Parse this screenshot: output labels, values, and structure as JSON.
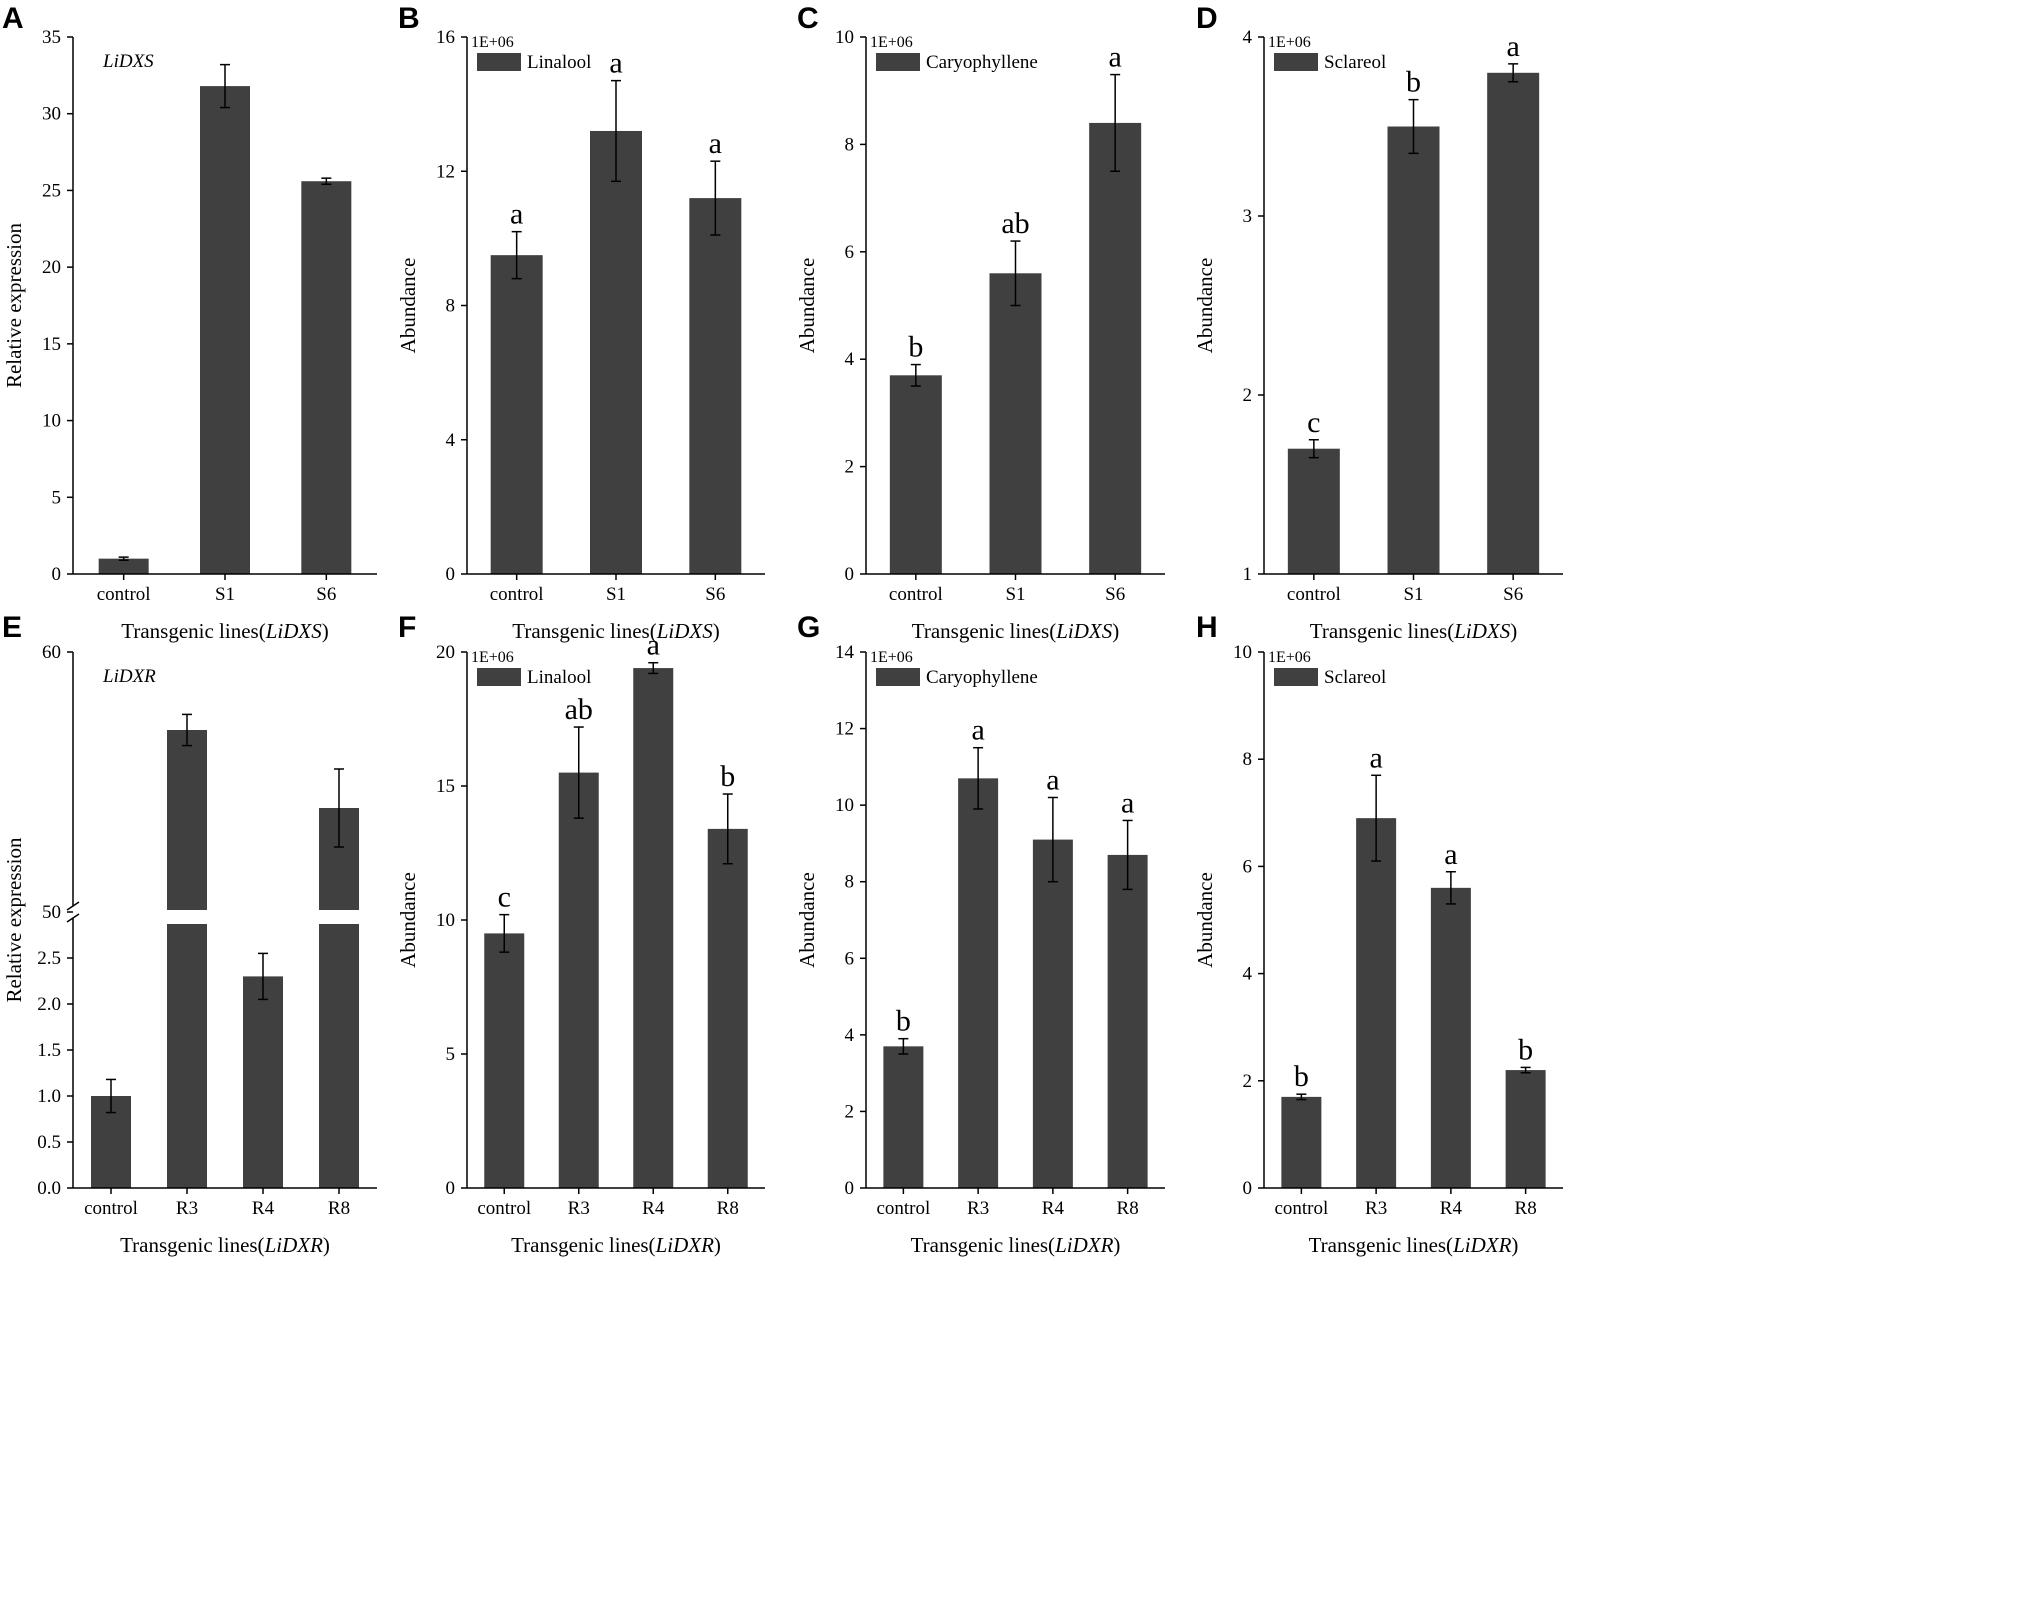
{
  "chart_data": [
    {
      "panel": "A",
      "type": "bar",
      "gene_label": "LiDXS",
      "categories": [
        "control",
        "S1",
        "S6"
      ],
      "values": [
        1.0,
        31.8,
        25.6
      ],
      "errors": [
        0.1,
        1.4,
        0.2
      ],
      "significance": [],
      "ylabel": "Relative expression",
      "xlabel_prefix": "Transgenic lines(",
      "xlabel_italic": "LiDXS",
      "xlabel_suffix": ")",
      "ylim": [
        0,
        35
      ],
      "yticks": [
        0,
        5,
        10,
        15,
        20,
        25,
        30,
        35
      ],
      "ytick_labels": [
        "0",
        "5",
        "10",
        "15",
        "20",
        "25",
        "30",
        "35"
      ]
    },
    {
      "panel": "B",
      "type": "bar",
      "legend": "Linalool",
      "multiplier": "1E+06",
      "categories": [
        "control",
        "S1",
        "S6"
      ],
      "values": [
        9.5,
        13.2,
        11.2
      ],
      "errors": [
        0.7,
        1.5,
        1.1
      ],
      "significance": [
        "a",
        "a",
        "a"
      ],
      "ylabel": "Abundance",
      "xlabel_prefix": "Transgenic lines(",
      "xlabel_italic": "LiDXS",
      "xlabel_suffix": ")",
      "ylim": [
        0,
        16
      ],
      "yticks": [
        0,
        4,
        8,
        12,
        16
      ],
      "ytick_labels": [
        "0",
        "4",
        "8",
        "12",
        "16"
      ]
    },
    {
      "panel": "C",
      "type": "bar",
      "legend": "Caryophyllene",
      "multiplier": "1E+06",
      "categories": [
        "control",
        "S1",
        "S6"
      ],
      "values": [
        3.7,
        5.6,
        8.4
      ],
      "errors": [
        0.2,
        0.6,
        0.9
      ],
      "significance": [
        "b",
        "ab",
        "a"
      ],
      "ylabel": "Abundance",
      "xlabel_prefix": "Transgenic lines(",
      "xlabel_italic": "LiDXS",
      "xlabel_suffix": ")",
      "ylim": [
        0,
        10
      ],
      "yticks": [
        0,
        2,
        4,
        6,
        8,
        10
      ],
      "ytick_labels": [
        "0",
        "2",
        "4",
        "6",
        "8",
        "10"
      ]
    },
    {
      "panel": "D",
      "type": "bar",
      "legend": "Sclareol",
      "multiplier": "1E+06",
      "categories": [
        "control",
        "S1",
        "S6"
      ],
      "values": [
        1.7,
        3.5,
        3.8
      ],
      "errors": [
        0.05,
        0.15,
        0.05
      ],
      "significance": [
        "c",
        "b",
        "a"
      ],
      "ylabel": "Abundance",
      "xlabel_prefix": "Transgenic lines(",
      "xlabel_italic": "LiDXS",
      "xlabel_suffix": ")",
      "ylim": [
        1,
        4
      ],
      "yticks": [
        1,
        2,
        3,
        4
      ],
      "ytick_labels": [
        "1",
        "2",
        "3",
        "4"
      ]
    },
    {
      "panel": "E",
      "type": "bar",
      "gene_label": "LiDXR",
      "broken_axis": true,
      "categories": [
        "control",
        "R3",
        "R4",
        "R8"
      ],
      "values": [
        1.0,
        57.0,
        2.3,
        54.0
      ],
      "errors": [
        0.18,
        0.6,
        0.25,
        1.5
      ],
      "significance": [],
      "ylabel": "Relative expression",
      "xlabel_prefix": "Transgenic lines(",
      "xlabel_italic": "LiDXR",
      "xlabel_suffix": ")",
      "lower_ylim": [
        0,
        3
      ],
      "upper_ylim": [
        50,
        60
      ],
      "yticks": [
        0,
        0.5,
        1.0,
        1.5,
        2.0,
        2.5,
        50,
        60
      ],
      "ytick_labels": [
        "0.0",
        "0.5",
        "1.0",
        "1.5",
        "2.0",
        "2.5",
        "50",
        "60"
      ]
    },
    {
      "panel": "F",
      "type": "bar",
      "legend": "Linalool",
      "multiplier": "1E+06",
      "categories": [
        "control",
        "R3",
        "R4",
        "R8"
      ],
      "values": [
        9.5,
        15.5,
        19.4,
        13.4
      ],
      "errors": [
        0.7,
        1.7,
        0.2,
        1.3
      ],
      "significance": [
        "c",
        "ab",
        "a",
        "b"
      ],
      "ylabel": "Abundance",
      "xlabel_prefix": "Transgenic lines(",
      "xlabel_italic": "LiDXR",
      "xlabel_suffix": ")",
      "ylim": [
        0,
        20
      ],
      "yticks": [
        0,
        5,
        10,
        15,
        20
      ],
      "ytick_labels": [
        "0",
        "5",
        "10",
        "15",
        "20"
      ]
    },
    {
      "panel": "G",
      "type": "bar",
      "legend": "Caryophyllene",
      "multiplier": "1E+06",
      "categories": [
        "control",
        "R3",
        "R4",
        "R8"
      ],
      "values": [
        3.7,
        10.7,
        9.1,
        8.7
      ],
      "errors": [
        0.2,
        0.8,
        1.1,
        0.9
      ],
      "significance": [
        "b",
        "a",
        "a",
        "a"
      ],
      "ylabel": "Abundance",
      "xlabel_prefix": "Transgenic lines(",
      "xlabel_italic": "LiDXR",
      "xlabel_suffix": ")",
      "ylim": [
        0,
        14
      ],
      "yticks": [
        0,
        2,
        4,
        6,
        8,
        10,
        12,
        14
      ],
      "ytick_labels": [
        "0",
        "2",
        "4",
        "6",
        "8",
        "10",
        "12",
        "14"
      ]
    },
    {
      "panel": "H",
      "type": "bar",
      "legend": "Sclareol",
      "multiplier": "1E+06",
      "categories": [
        "control",
        "R3",
        "R4",
        "R8"
      ],
      "values": [
        1.7,
        6.9,
        5.6,
        2.2
      ],
      "errors": [
        0.05,
        0.8,
        0.3,
        0.05
      ],
      "significance": [
        "b",
        "a",
        "a",
        "b"
      ],
      "ylabel": "Abundance",
      "xlabel_prefix": "Transgenic lines(",
      "xlabel_italic": "LiDXR",
      "xlabel_suffix": ")",
      "ylim": [
        0,
        10
      ],
      "yticks": [
        0,
        2,
        4,
        6,
        8,
        10
      ],
      "ytick_labels": [
        "0",
        "2",
        "4",
        "6",
        "8",
        "10"
      ]
    }
  ],
  "colors": {
    "bar": "#404040",
    "axis": "#000000"
  }
}
